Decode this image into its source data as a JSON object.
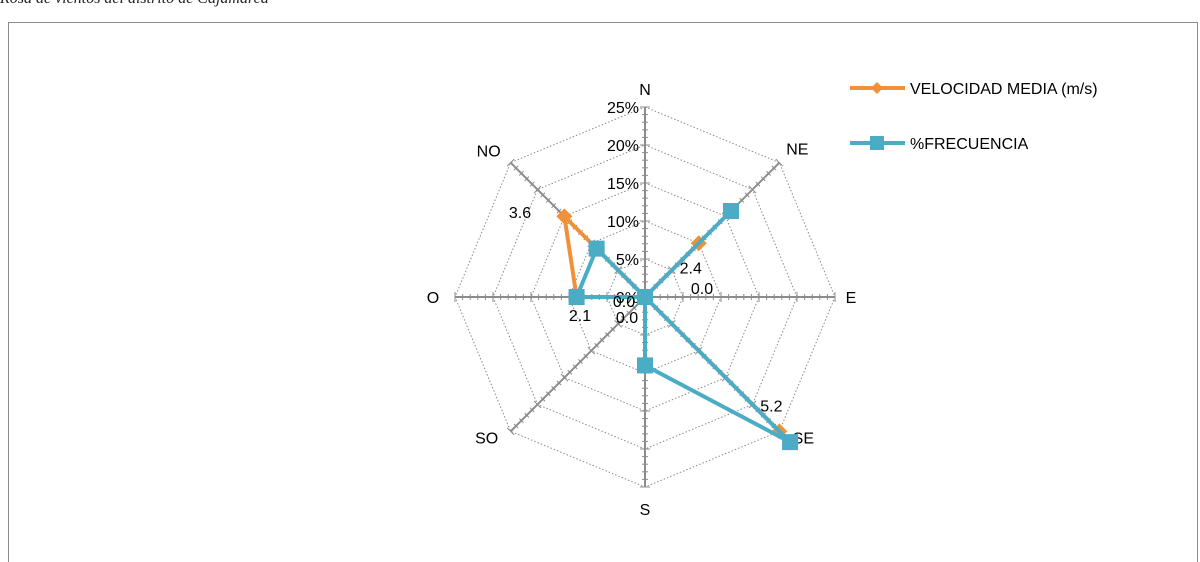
{
  "caption": "Rosa de vientos del distrito de Cajamarca",
  "chart_data": {
    "type": "radar",
    "categories": [
      "N",
      "NE",
      "E",
      "SE",
      "S",
      "SO",
      "O",
      "NO"
    ],
    "radial_ticks": [
      "0%",
      "5%",
      "10%",
      "15%",
      "20%",
      "25%"
    ],
    "rmax": 25,
    "grid": true,
    "legend_position": "right",
    "series": [
      {
        "name": "VELOCIDAD MEDIA (m/s)",
        "color": "#f0913a",
        "marker": "diamond",
        "values": [
          0.0,
          2.4,
          0.0,
          5.2,
          0.0,
          0.0,
          2.1,
          3.6
        ],
        "plotted_percent": [
          0.0,
          10.0,
          0.0,
          25.0,
          0.0,
          0.0,
          9.0,
          15.0
        ],
        "data_labels": [
          "",
          "2.4",
          "0.0",
          "5.2",
          "0.0",
          "0.0",
          "2.1",
          "3.6"
        ]
      },
      {
        "name": "%FRECUENCIA",
        "color": "#4bacc6",
        "marker": "square",
        "values": [
          0.0,
          16.0,
          0.0,
          27.0,
          9.0,
          0.0,
          9.0,
          9.0
        ]
      }
    ]
  }
}
